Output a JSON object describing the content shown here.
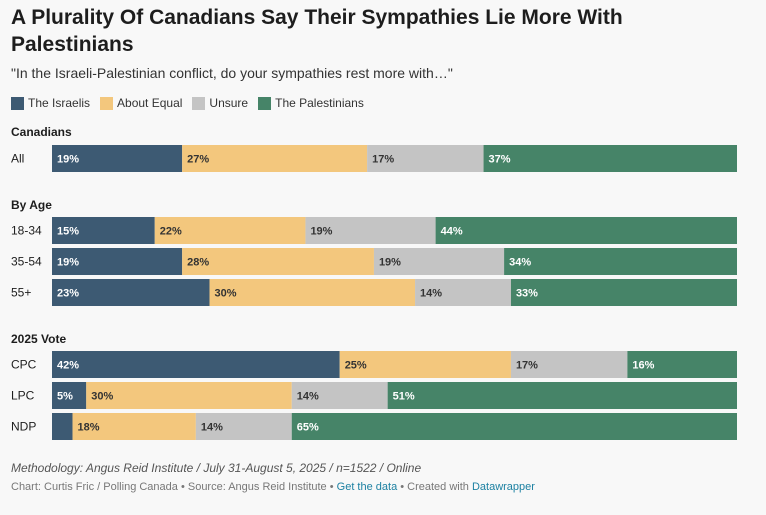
{
  "header": {
    "title": "A Plurality Of Canadians Say Their Sympathies Lie More With Palestinians",
    "subtitle": "\"In the Israeli-Palestinian conflict, do your sympathies rest more with…\""
  },
  "legend": [
    {
      "label": "The Israelis",
      "color": "#3d5a73"
    },
    {
      "label": "About Equal",
      "color": "#f3c77d"
    },
    {
      "label": "Unsure",
      "color": "#c4c4c4"
    },
    {
      "label": "The Palestinians",
      "color": "#468468"
    }
  ],
  "chart_data": {
    "type": "stacked-bar-horizontal",
    "series_names": [
      "The Israelis",
      "About Equal",
      "Unsure",
      "The Palestinians"
    ],
    "colors": [
      "#3d5a73",
      "#f3c77d",
      "#c4c4c4",
      "#468468"
    ],
    "label_colors": [
      "#ffffff",
      "#333333",
      "#333333",
      "#ffffff"
    ],
    "groups": [
      {
        "title": "Canadians",
        "rows": [
          {
            "label": "All",
            "values": [
              19,
              27,
              17,
              37
            ]
          }
        ]
      },
      {
        "title": "By Age",
        "rows": [
          {
            "label": "18-34",
            "values": [
              15,
              22,
              19,
              44
            ]
          },
          {
            "label": "35-54",
            "values": [
              19,
              28,
              19,
              34
            ]
          },
          {
            "label": "55+",
            "values": [
              23,
              30,
              14,
              33
            ]
          }
        ]
      },
      {
        "title": "2025 Vote",
        "rows": [
          {
            "label": "CPC",
            "values": [
              42,
              25,
              17,
              16
            ]
          },
          {
            "label": "LPC",
            "values": [
              5,
              30,
              14,
              51
            ]
          },
          {
            "label": "NDP",
            "values": [
              3,
              18,
              14,
              65
            ]
          }
        ]
      }
    ],
    "value_suffix": "%",
    "min_label_value": 5
  },
  "footer": {
    "methodology": "Methodology: Angus Reid Institute / July 31-August 5, 2025 / n=1522 / Online",
    "credit": "Chart: Curtis Fric / Polling Canada • Source: Angus Reid Institute • ",
    "get_data": "Get the data",
    "separator": " • Created with ",
    "tool": "Datawrapper"
  }
}
